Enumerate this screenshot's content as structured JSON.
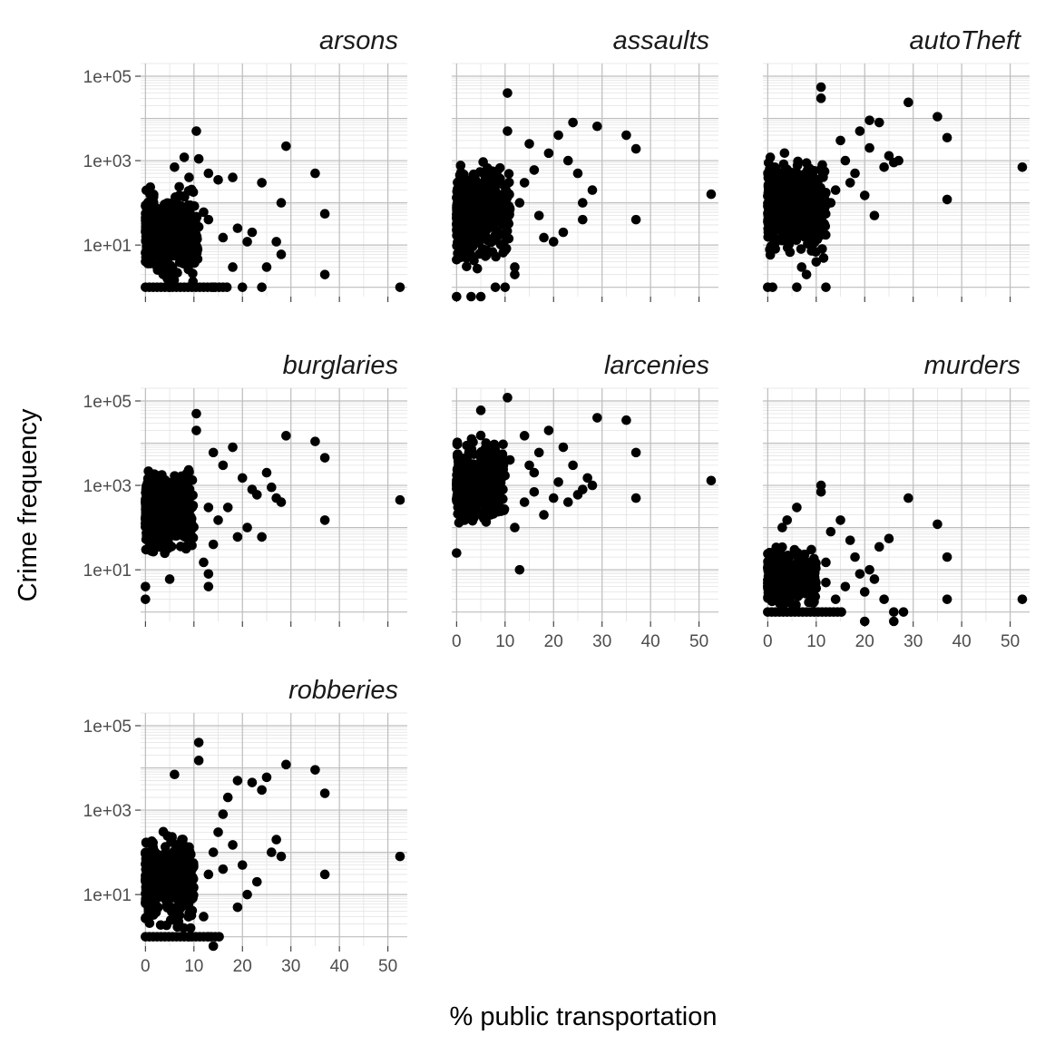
{
  "chart_data": {
    "type": "scatter",
    "layout": "facet_wrap",
    "ncol": 3,
    "y_scale": "log10",
    "x_range": [
      -1,
      54
    ],
    "y_range": [
      0.6,
      200000
    ],
    "x_ticks": [
      0,
      10,
      20,
      30,
      40,
      50
    ],
    "x_tick_labels": [
      "0",
      "10",
      "20",
      "30",
      "40",
      "50"
    ],
    "y_ticks": [
      10,
      1000,
      100000
    ],
    "y_tick_labels": [
      "1e+01",
      "1e+03",
      "1e+05"
    ],
    "xlabel": "% public transportation",
    "ylabel": "Crime frequency",
    "grid": true,
    "point_color": "#000000",
    "facets": [
      {
        "name": "arsons",
        "cloud": {
          "x_max": 11,
          "y_min": 1,
          "y_max": 300,
          "n": 420
        },
        "points": [
          [
            10.5,
            5000
          ],
          [
            29,
            2200
          ],
          [
            35,
            500
          ],
          [
            37,
            55
          ],
          [
            37,
            2
          ],
          [
            52.5,
            1
          ],
          [
            24,
            300
          ],
          [
            28,
            100
          ],
          [
            27,
            12
          ],
          [
            28,
            6
          ],
          [
            25,
            3
          ],
          [
            19,
            25
          ],
          [
            21,
            12
          ],
          [
            16,
            15
          ],
          [
            15,
            350
          ],
          [
            13,
            500
          ],
          [
            11,
            1100
          ],
          [
            12,
            60
          ],
          [
            13,
            40
          ],
          [
            9,
            400
          ],
          [
            8,
            1200
          ],
          [
            7,
            150
          ],
          [
            6,
            700
          ],
          [
            18,
            400
          ],
          [
            22,
            20
          ],
          [
            18,
            3
          ],
          [
            20,
            1
          ],
          [
            24,
            1
          ],
          [
            14,
            1
          ],
          [
            5,
            1
          ]
        ]
      },
      {
        "name": "assaults",
        "cloud": {
          "x_max": 11,
          "y_min": 2,
          "y_max": 1500,
          "n": 450
        },
        "points": [
          [
            10.5,
            40000
          ],
          [
            10.5,
            5000
          ],
          [
            29,
            6500
          ],
          [
            35,
            4000
          ],
          [
            37,
            1900
          ],
          [
            52.5,
            160
          ],
          [
            37,
            40
          ],
          [
            28,
            200
          ],
          [
            26,
            100
          ],
          [
            25,
            500
          ],
          [
            23,
            1000
          ],
          [
            21,
            4000
          ],
          [
            19,
            1500
          ],
          [
            22,
            20
          ],
          [
            20,
            12
          ],
          [
            18,
            15
          ],
          [
            15,
            2500
          ],
          [
            14,
            300
          ],
          [
            13,
            100
          ],
          [
            12,
            3
          ],
          [
            12,
            2
          ],
          [
            10,
            1
          ],
          [
            8,
            1
          ],
          [
            5,
            0.6
          ],
          [
            3,
            0.6
          ],
          [
            0,
            0.6
          ],
          [
            16,
            600
          ],
          [
            17,
            50
          ],
          [
            24,
            8000
          ],
          [
            26,
            40
          ]
        ]
      },
      {
        "name": "autoTheft",
        "cloud": {
          "x_max": 12,
          "y_min": 3,
          "y_max": 2000,
          "n": 470
        },
        "points": [
          [
            11,
            55000
          ],
          [
            11,
            30000
          ],
          [
            29,
            24000
          ],
          [
            35,
            11000
          ],
          [
            37,
            3500
          ],
          [
            52.5,
            700
          ],
          [
            37,
            120
          ],
          [
            27,
            1000
          ],
          [
            25,
            1300
          ],
          [
            23,
            8000
          ],
          [
            19,
            5000
          ],
          [
            21,
            9000
          ],
          [
            21,
            2000
          ],
          [
            18,
            500
          ],
          [
            20,
            150
          ],
          [
            22,
            50
          ],
          [
            17,
            300
          ],
          [
            16,
            1000
          ],
          [
            14,
            200
          ],
          [
            13,
            100
          ],
          [
            12,
            1
          ],
          [
            8,
            2
          ],
          [
            7,
            3
          ],
          [
            6,
            1
          ],
          [
            1,
            1
          ],
          [
            0,
            1
          ],
          [
            15,
            3000
          ],
          [
            10,
            4
          ],
          [
            24,
            700
          ],
          [
            26,
            900
          ]
        ]
      },
      {
        "name": "burglaries",
        "cloud": {
          "x_max": 10,
          "y_min": 15,
          "y_max": 4000,
          "n": 420
        },
        "points": [
          [
            10.5,
            50000
          ],
          [
            10.5,
            20000
          ],
          [
            29,
            15000
          ],
          [
            35,
            11000
          ],
          [
            37,
            4500
          ],
          [
            52.5,
            450
          ],
          [
            37,
            150
          ],
          [
            28,
            400
          ],
          [
            26,
            900
          ],
          [
            25,
            2000
          ],
          [
            22,
            800
          ],
          [
            20,
            1500
          ],
          [
            18,
            8000
          ],
          [
            16,
            3000
          ],
          [
            14,
            6000
          ],
          [
            13,
            300
          ],
          [
            14,
            40
          ],
          [
            12,
            15
          ],
          [
            13,
            4
          ],
          [
            13,
            8
          ],
          [
            0,
            2
          ],
          [
            0,
            4
          ],
          [
            5,
            6
          ],
          [
            15,
            150
          ],
          [
            17,
            300
          ],
          [
            19,
            60
          ],
          [
            21,
            100
          ],
          [
            24,
            60
          ],
          [
            23,
            600
          ],
          [
            27,
            500
          ]
        ]
      },
      {
        "name": "larcenies",
        "cloud": {
          "x_max": 10,
          "y_min": 80,
          "y_max": 20000,
          "n": 420
        },
        "points": [
          [
            10.5,
            120000
          ],
          [
            5,
            60000
          ],
          [
            29,
            40000
          ],
          [
            35,
            35000
          ],
          [
            37,
            6000
          ],
          [
            52.5,
            1300
          ],
          [
            37,
            500
          ],
          [
            28,
            1000
          ],
          [
            26,
            800
          ],
          [
            24,
            3000
          ],
          [
            22,
            8000
          ],
          [
            19,
            20000
          ],
          [
            17,
            6000
          ],
          [
            15,
            3000
          ],
          [
            14,
            400
          ],
          [
            13,
            10
          ],
          [
            0,
            25
          ],
          [
            12,
            100
          ],
          [
            16,
            700
          ],
          [
            18,
            200
          ],
          [
            20,
            500
          ],
          [
            23,
            400
          ],
          [
            27,
            1500
          ],
          [
            21,
            1200
          ],
          [
            11,
            4000
          ],
          [
            9,
            300
          ],
          [
            7,
            200
          ],
          [
            25,
            600
          ],
          [
            16,
            2000
          ],
          [
            14,
            15000
          ]
        ]
      },
      {
        "name": "murders",
        "cloud": {
          "x_max": 10,
          "y_min": 1,
          "y_max": 40,
          "n": 380
        },
        "points": [
          [
            11,
            1000
          ],
          [
            11,
            700
          ],
          [
            29,
            500
          ],
          [
            35,
            120
          ],
          [
            37,
            20
          ],
          [
            37,
            2
          ],
          [
            52.5,
            2
          ],
          [
            25,
            55
          ],
          [
            23,
            35
          ],
          [
            21,
            10
          ],
          [
            18,
            20
          ],
          [
            17,
            50
          ],
          [
            15,
            150
          ],
          [
            13,
            80
          ],
          [
            12,
            15
          ],
          [
            12,
            5
          ],
          [
            6,
            300
          ],
          [
            4,
            150
          ],
          [
            3,
            100
          ],
          [
            22,
            6
          ],
          [
            24,
            2
          ],
          [
            20,
            3
          ],
          [
            26,
            1
          ],
          [
            28,
            1
          ],
          [
            26,
            0.6
          ],
          [
            20,
            0.6
          ],
          [
            14,
            2
          ],
          [
            16,
            4
          ],
          [
            19,
            8
          ],
          [
            9,
            30
          ]
        ]
      },
      {
        "name": "robberies",
        "cloud": {
          "x_max": 10,
          "y_min": 1,
          "y_max": 500,
          "n": 430
        },
        "points": [
          [
            11,
            40000
          ],
          [
            11,
            15000
          ],
          [
            29,
            12000
          ],
          [
            35,
            9000
          ],
          [
            37,
            2500
          ],
          [
            52.5,
            80
          ],
          [
            37,
            30
          ],
          [
            28,
            80
          ],
          [
            27,
            200
          ],
          [
            25,
            6000
          ],
          [
            24,
            3000
          ],
          [
            22,
            4500
          ],
          [
            19,
            5000
          ],
          [
            17,
            2000
          ],
          [
            15,
            300
          ],
          [
            14,
            100
          ],
          [
            13,
            30
          ],
          [
            12,
            3
          ],
          [
            13,
            1
          ],
          [
            14,
            0.6
          ],
          [
            9,
            1
          ],
          [
            6,
            7000
          ],
          [
            16,
            800
          ],
          [
            18,
            150
          ],
          [
            20,
            50
          ],
          [
            21,
            10
          ],
          [
            23,
            20
          ],
          [
            26,
            100
          ],
          [
            19,
            5
          ],
          [
            16,
            40
          ]
        ]
      }
    ]
  }
}
